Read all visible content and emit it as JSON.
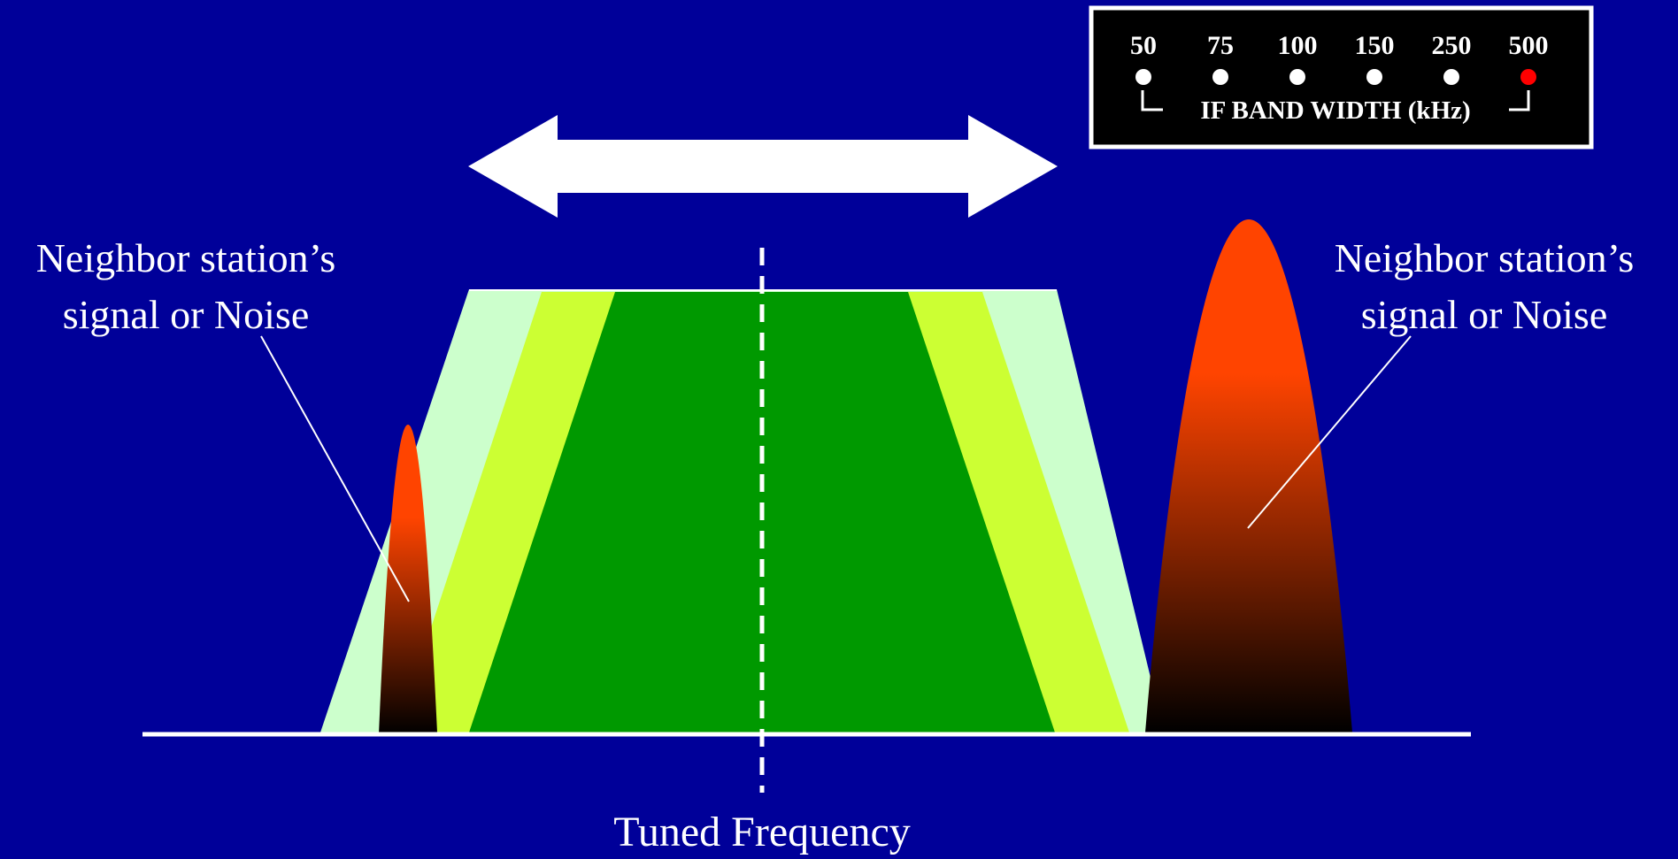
{
  "bandwidth_panel": {
    "options": [
      "50",
      "75",
      "100",
      "150",
      "250",
      "500"
    ],
    "selected_index": 5,
    "caption": "IF BAND WIDTH (kHz)",
    "indicator_color": "#ffffff",
    "selected_color": "#ff0000"
  },
  "labels": {
    "left_signal_line1": "Neighbor station’s",
    "left_signal_line2": "signal or Noise",
    "right_signal_line1": "Neighbor station’s",
    "right_signal_line2": "signal or Noise",
    "tuned_frequency": "Tuned Frequency"
  },
  "colors": {
    "background": "#000099",
    "band_500": "#ccffcc",
    "band_250": "#ccff33",
    "band_narrow": "#009900",
    "signal_top": "#ff4400",
    "signal_bottom": "#000000"
  }
}
